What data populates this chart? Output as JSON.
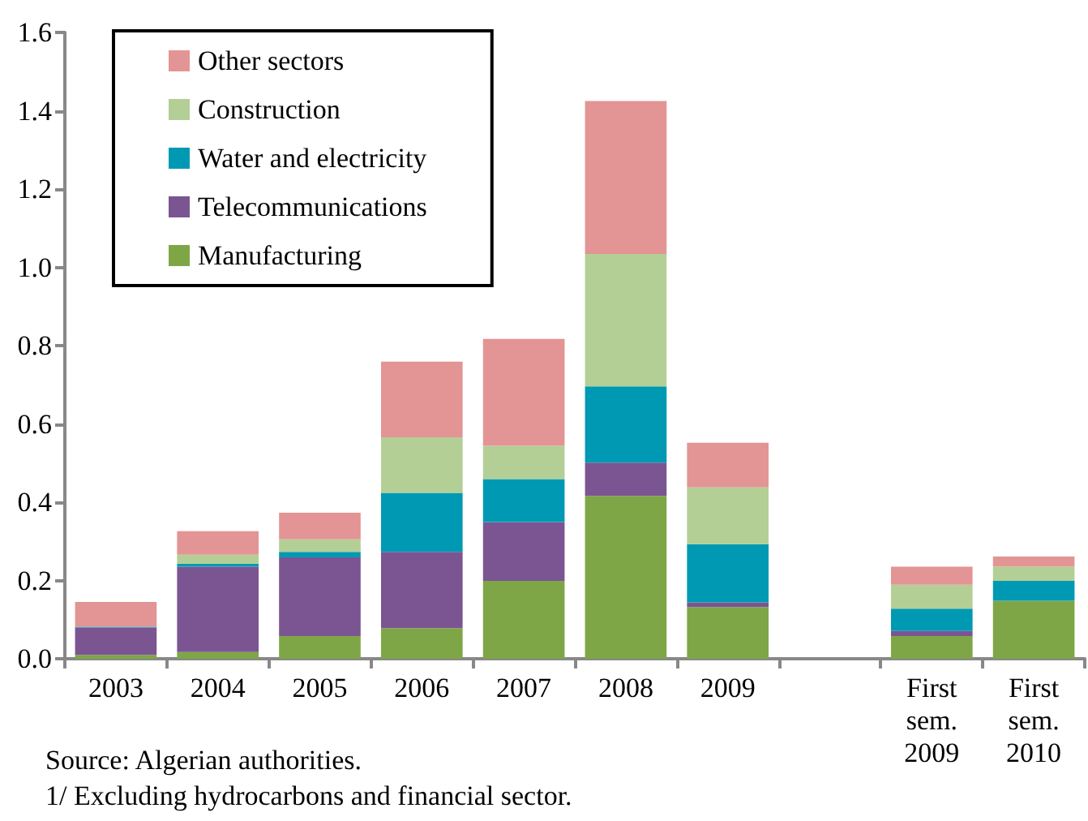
{
  "chart_data": {
    "type": "bar",
    "stacked": true,
    "categories": [
      "2003",
      "2004",
      "2005",
      "2006",
      "2007",
      "2008",
      "2009",
      null,
      "First sem. 2009",
      "First sem. 2010"
    ],
    "series": [
      {
        "name": "Manufacturing",
        "color": "#7ea646",
        "values": [
          0.01,
          0.017,
          0.058,
          0.078,
          0.199,
          0.416,
          0.132,
          null,
          0.058,
          0.148
        ]
      },
      {
        "name": "Telecommunications",
        "color": "#7b5592",
        "values": [
          0.07,
          0.218,
          0.201,
          0.195,
          0.15,
          0.085,
          0.012,
          null,
          0.013,
          0
        ]
      },
      {
        "name": "Water and electricity",
        "color": "#0099b3",
        "values": [
          0.002,
          0.008,
          0.014,
          0.151,
          0.11,
          0.195,
          0.149,
          null,
          0.057,
          0.051
        ]
      },
      {
        "name": "Construction",
        "color": "#b3cf95",
        "values": [
          0,
          0.023,
          0.032,
          0.142,
          0.085,
          0.338,
          0.145,
          null,
          0.061,
          0.037
        ]
      },
      {
        "name": "Other sectors",
        "color": "#e39494",
        "values": [
          0.063,
          0.06,
          0.068,
          0.193,
          0.273,
          0.391,
          0.114,
          null,
          0.046,
          0.025
        ]
      }
    ],
    "ylim": [
      0,
      1.6
    ],
    "yticks": [
      {
        "value": 0,
        "label": "0.0"
      },
      {
        "value": 0.2,
        "label": "0.2"
      },
      {
        "value": 0.4,
        "label": "0.4"
      },
      {
        "value": 0.6,
        "label": "0.6"
      },
      {
        "value": 0.8,
        "label": "0.8"
      },
      {
        "value": 1,
        "label": "1.0"
      },
      {
        "value": 1.2,
        "label": "1.2"
      },
      {
        "value": 1.4,
        "label": "1.4"
      },
      {
        "value": 1.6,
        "label": "1.6"
      }
    ],
    "grid": false,
    "legend": "top left",
    "annotations": [
      "Source: Algerian authorities.",
      "1/ Excluding hydrocarbons and financial sector."
    ]
  }
}
